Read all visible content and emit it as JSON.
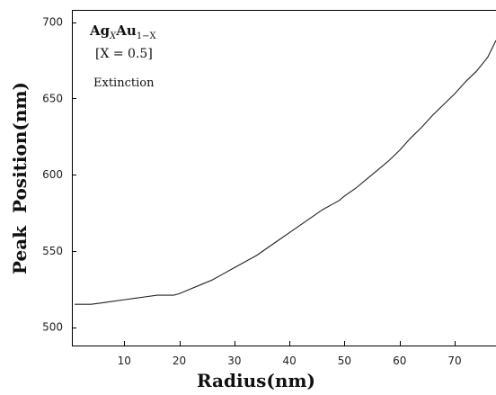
{
  "chart_data": {
    "type": "line",
    "xlabel": "Radius(nm)",
    "ylabel": "Peak  Position(nm)",
    "xlim": [
      0.5,
      77.5
    ],
    "ylim": [
      488,
      708
    ],
    "x_ticks": [
      10,
      20,
      30,
      40,
      50,
      60,
      70
    ],
    "y_ticks": [
      500,
      550,
      600,
      650,
      700
    ],
    "grid": false,
    "annotations": {
      "material_base": "Ag",
      "material_sub1": "X",
      "material_mid": "Au",
      "material_sub2": "1−X",
      "composition": "[X = 0.5]",
      "mode": "Extinction"
    },
    "series": [
      {
        "x": [
          1,
          4,
          6,
          8,
          10,
          12,
          14,
          16,
          18,
          19,
          20,
          22,
          24,
          26,
          28,
          30,
          32,
          34,
          36,
          38,
          40,
          42,
          44,
          46,
          48,
          49,
          50,
          52,
          54,
          56,
          58,
          60,
          62,
          64,
          66,
          68,
          70,
          71,
          72,
          74,
          76,
          77.5
        ],
        "y": [
          515,
          515,
          516,
          517,
          518,
          519,
          520,
          521,
          521,
          521,
          522,
          525,
          528,
          531,
          535,
          539,
          543,
          547,
          552,
          557,
          562,
          567,
          572,
          577,
          581,
          583,
          586,
          591,
          597,
          603,
          609,
          616,
          624,
          631,
          639,
          646,
          653,
          657,
          661,
          668,
          677,
          688
        ]
      }
    ]
  }
}
